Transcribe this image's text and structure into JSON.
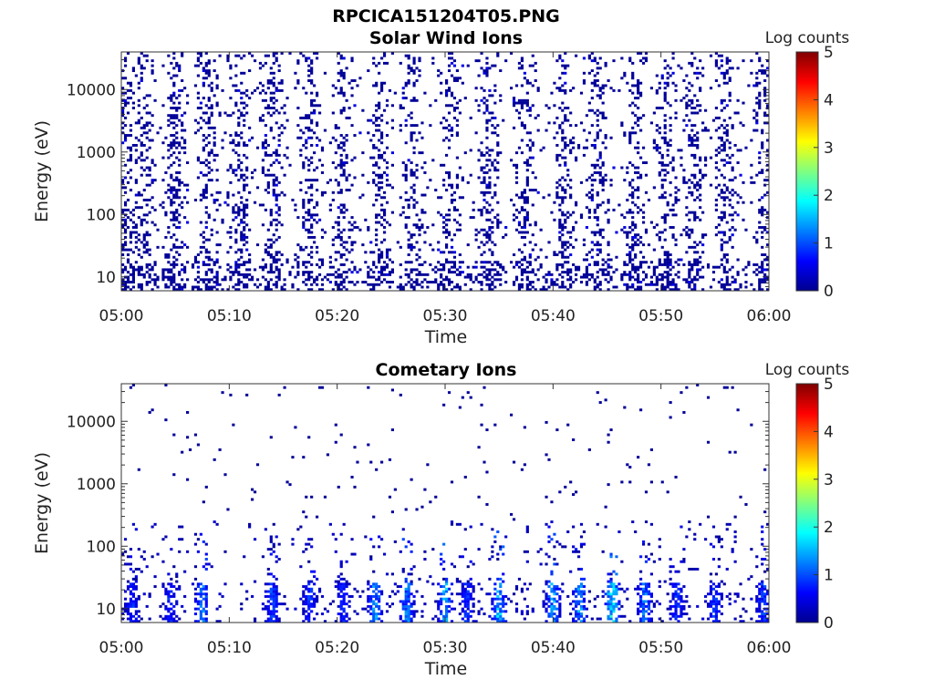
{
  "figure_title": "RPCICA151204T05.PNG",
  "colorbar_colors": [
    "#00008f",
    "#0000ff",
    "#0080ff",
    "#00ffff",
    "#80ff80",
    "#ffff00",
    "#ff8000",
    "#ff0000",
    "#800000"
  ],
  "chart_data": [
    {
      "type": "heatmap",
      "title": "Solar Wind Ions",
      "xlabel": "Time",
      "ylabel": "Energy (eV)",
      "x_ticks": [
        "05:00",
        "05:10",
        "05:20",
        "05:30",
        "05:40",
        "05:50",
        "06:00"
      ],
      "x_range_minutes": [
        0,
        60
      ],
      "y_scale": "log",
      "y_ticks": [
        "10",
        "100",
        "1000",
        "10000"
      ],
      "y_range_eV": [
        6,
        40000
      ],
      "colorbar": {
        "label": "Log counts",
        "ticks": [
          "0",
          "1",
          "2",
          "3",
          "4",
          "5"
        ],
        "range": [
          0,
          5
        ]
      },
      "dominant_log_counts": 0,
      "high_energy_burst_minutes": [
        0.5,
        2,
        5,
        8,
        11,
        14,
        17.5,
        20.5,
        24,
        27,
        30.5,
        34,
        37.5,
        41,
        44,
        47.5,
        50.5,
        53,
        56,
        59.5
      ],
      "seed": 17
    },
    {
      "type": "heatmap",
      "title": "Cometary Ions",
      "xlabel": "Time",
      "ylabel": "Energy (eV)",
      "x_ticks": [
        "05:00",
        "05:10",
        "05:20",
        "05:30",
        "05:40",
        "05:50",
        "06:00"
      ],
      "x_range_minutes": [
        0,
        60
      ],
      "y_scale": "log",
      "y_ticks": [
        "10",
        "100",
        "1000",
        "10000"
      ],
      "y_range_eV": [
        6,
        40000
      ],
      "colorbar": {
        "label": "Log counts",
        "ticks": [
          "0",
          "1",
          "2",
          "3",
          "4",
          "5"
        ],
        "range": [
          0,
          5
        ]
      },
      "low_energy_bursts": [
        {
          "minute": 1,
          "max_log": 0.8
        },
        {
          "minute": 4.5,
          "max_log": 0.8
        },
        {
          "minute": 7.5,
          "max_log": 1.4
        },
        {
          "minute": 14,
          "max_log": 1.0
        },
        {
          "minute": 17.5,
          "max_log": 1.0
        },
        {
          "minute": 20.5,
          "max_log": 0.8
        },
        {
          "minute": 23.5,
          "max_log": 1.6
        },
        {
          "minute": 26.5,
          "max_log": 1.5
        },
        {
          "minute": 30,
          "max_log": 1.7
        },
        {
          "minute": 32,
          "max_log": 0.9
        },
        {
          "minute": 35,
          "max_log": 1.8
        },
        {
          "minute": 40,
          "max_log": 1.6
        },
        {
          "minute": 42.5,
          "max_log": 1.5
        },
        {
          "minute": 45.5,
          "max_log": 2.2
        },
        {
          "minute": 48.5,
          "max_log": 1.4
        },
        {
          "minute": 51.5,
          "max_log": 0.9
        },
        {
          "minute": 55,
          "max_log": 0.9
        },
        {
          "minute": 59.5,
          "max_log": 1.0
        }
      ],
      "seed": 91
    }
  ]
}
